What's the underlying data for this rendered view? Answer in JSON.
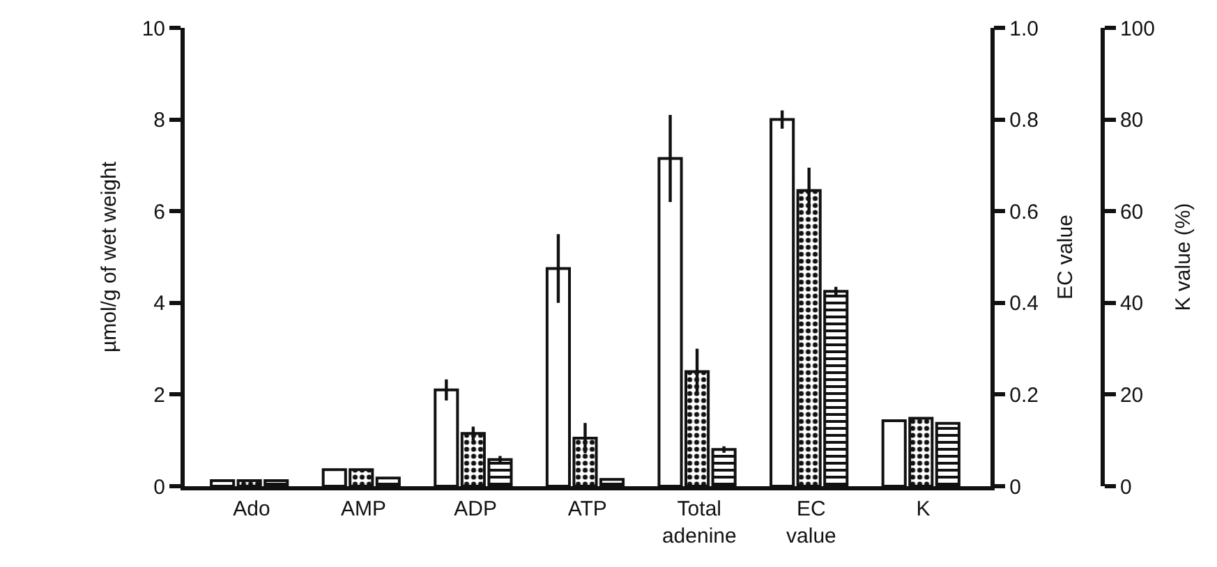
{
  "chart_data": {
    "type": "bar",
    "ylabel": "µmol/g of wet weight",
    "y2label": "EC value",
    "y3label": "K value (%)",
    "categories": [
      "Ado",
      "AMP",
      "ADP",
      "ATP",
      "Total adenine",
      "EC value",
      "K"
    ],
    "series": [
      {
        "color": "#ffffff",
        "axis": "y",
        "values": [
          0.12,
          0.36,
          2.1,
          4.75,
          7.15,
          null,
          null
        ],
        "errors": [
          null,
          null,
          0.23,
          0.75,
          0.95,
          null,
          null
        ]
      },
      {
        "color": "#111111",
        "axis": "y",
        "values": [
          0.12,
          0.36,
          1.15,
          1.05,
          2.5,
          null,
          null
        ],
        "errors": [
          null,
          null,
          0.15,
          0.33,
          0.5,
          null,
          null
        ]
      },
      {
        "color": "#111111",
        "axis": "y",
        "values": [
          0.12,
          0.18,
          0.58,
          0.15,
          0.8,
          null,
          null
        ],
        "errors": [
          null,
          null,
          0.08,
          null,
          0.07,
          null,
          null
        ]
      },
      {
        "color": "#ffffff",
        "axis": "y2",
        "values": [
          null,
          null,
          null,
          null,
          null,
          0.8,
          null
        ],
        "errors": [
          null,
          null,
          null,
          null,
          null,
          0.02,
          null
        ]
      },
      {
        "color": "#111111",
        "axis": "y2",
        "values": [
          null,
          null,
          null,
          null,
          null,
          0.645,
          null
        ],
        "errors": [
          null,
          null,
          null,
          null,
          null,
          0.05,
          null
        ]
      },
      {
        "color": "#111111",
        "axis": "y2",
        "values": [
          null,
          null,
          null,
          null,
          null,
          0.425,
          null
        ],
        "errors": [
          null,
          null,
          null,
          null,
          null,
          0.01,
          null
        ]
      },
      {
        "color": "#ffffff",
        "axis": "y3",
        "values": [
          null,
          null,
          null,
          null,
          null,
          null,
          14.3
        ]
      },
      {
        "color": "#111111",
        "axis": "y3",
        "values": [
          null,
          null,
          null,
          null,
          null,
          null,
          14.8
        ]
      },
      {
        "color": "#111111",
        "axis": "y3",
        "values": [
          null,
          null,
          null,
          null,
          null,
          null,
          13.7
        ]
      }
    ],
    "ylim": [
      0,
      10
    ],
    "yticks": [
      0,
      2,
      4,
      6,
      8,
      10
    ],
    "y2lim": [
      0,
      1
    ],
    "y2ticks": [
      0,
      0.2,
      0.4,
      0.6,
      0.8,
      {
        "value": 1,
        "label": "1.0"
      }
    ],
    "y3lim": [
      0,
      100
    ],
    "y3ticks": [
      0,
      20,
      40,
      60,
      80,
      100
    ],
    "grid": false,
    "legend": false
  }
}
